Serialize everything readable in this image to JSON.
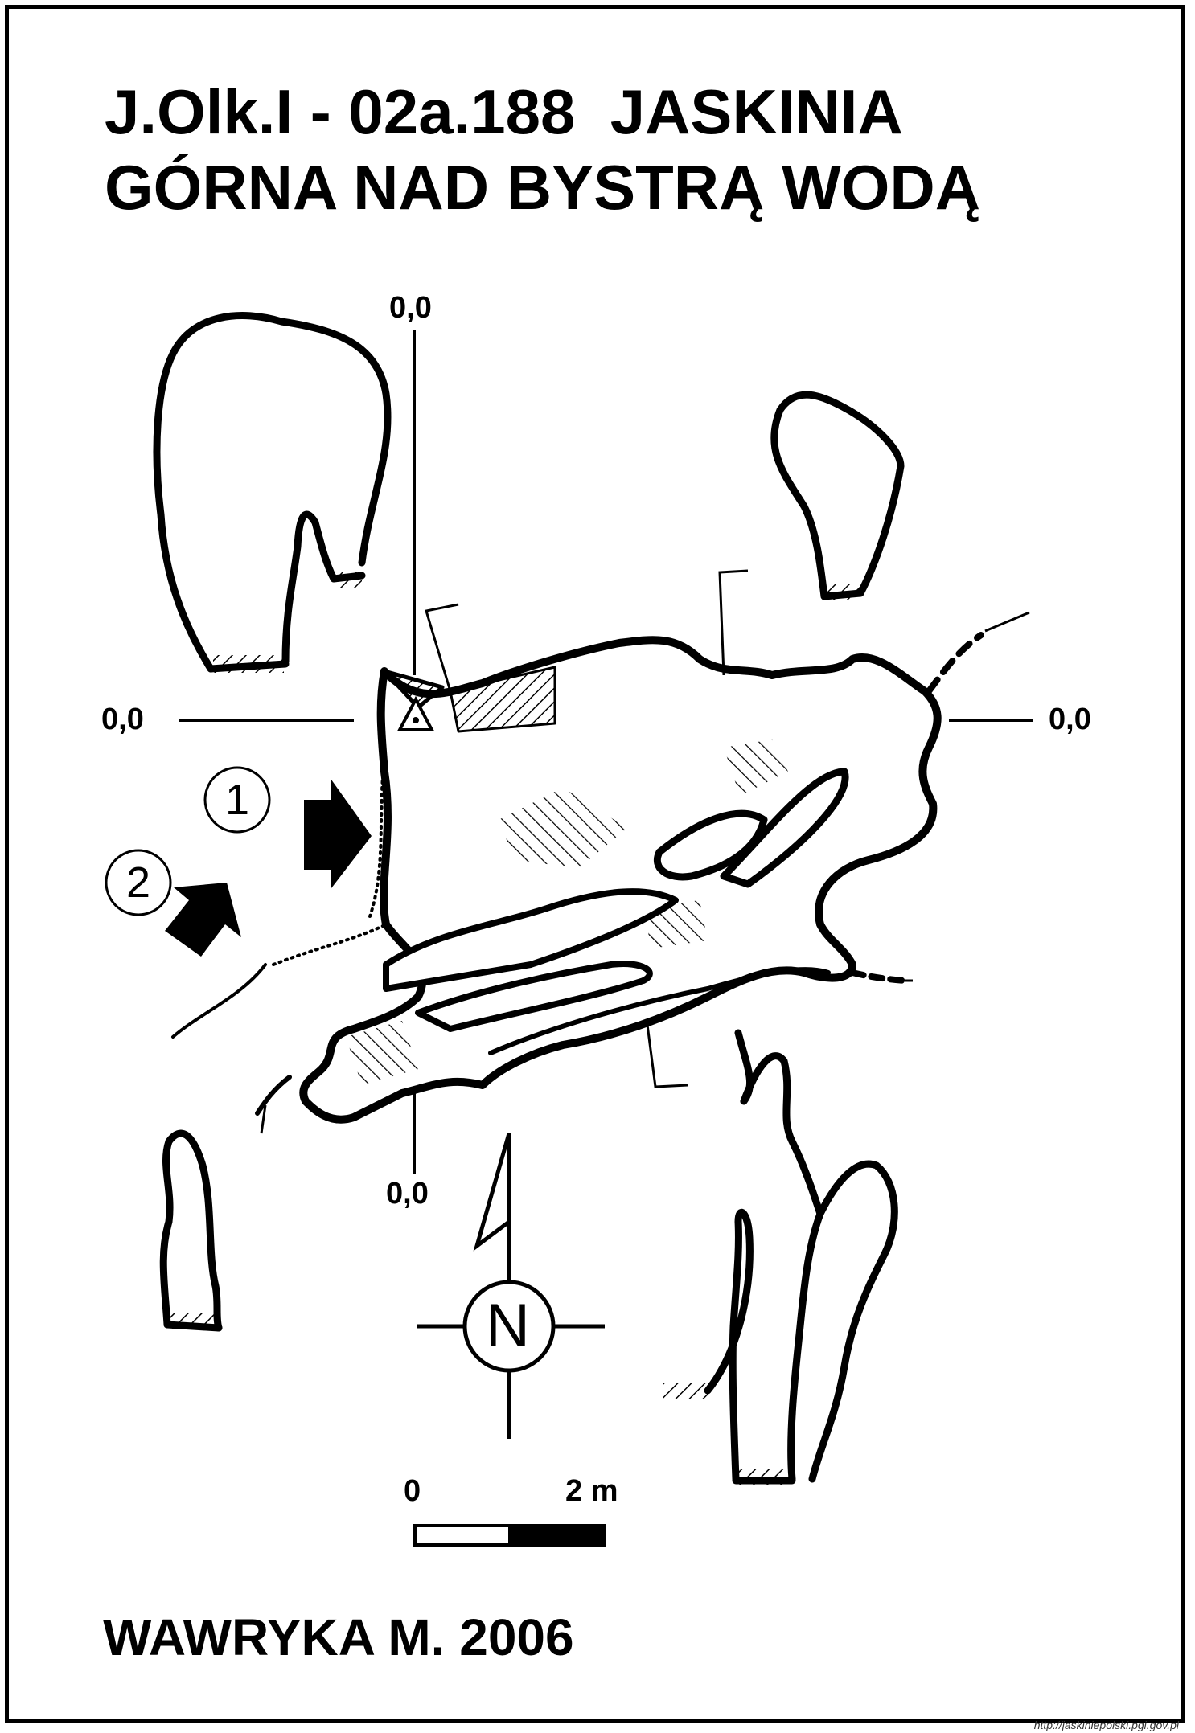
{
  "title": {
    "line1": "J.Olk.I - 02a.188  JASKINIA",
    "line2": "GÓRNA NAD BYSTRĄ WODĄ"
  },
  "author": "WAWRYKA M. 2006",
  "datum_labels": {
    "top": "0,0",
    "left": "0,0",
    "right": "0,0",
    "bottom": "0,0"
  },
  "entrances": [
    "1",
    "2"
  ],
  "north_label": "N",
  "scale": {
    "start": "0",
    "end": "2 m"
  },
  "source_url": "http://jaskiniepolski.pgi.gov.pl",
  "icons": [
    "north-arrow-icon",
    "entrance-arrow-icon",
    "survey-point-icon",
    "rubble-hatch-icon"
  ],
  "colors": {
    "ink": "#000000",
    "paper": "#ffffff"
  }
}
